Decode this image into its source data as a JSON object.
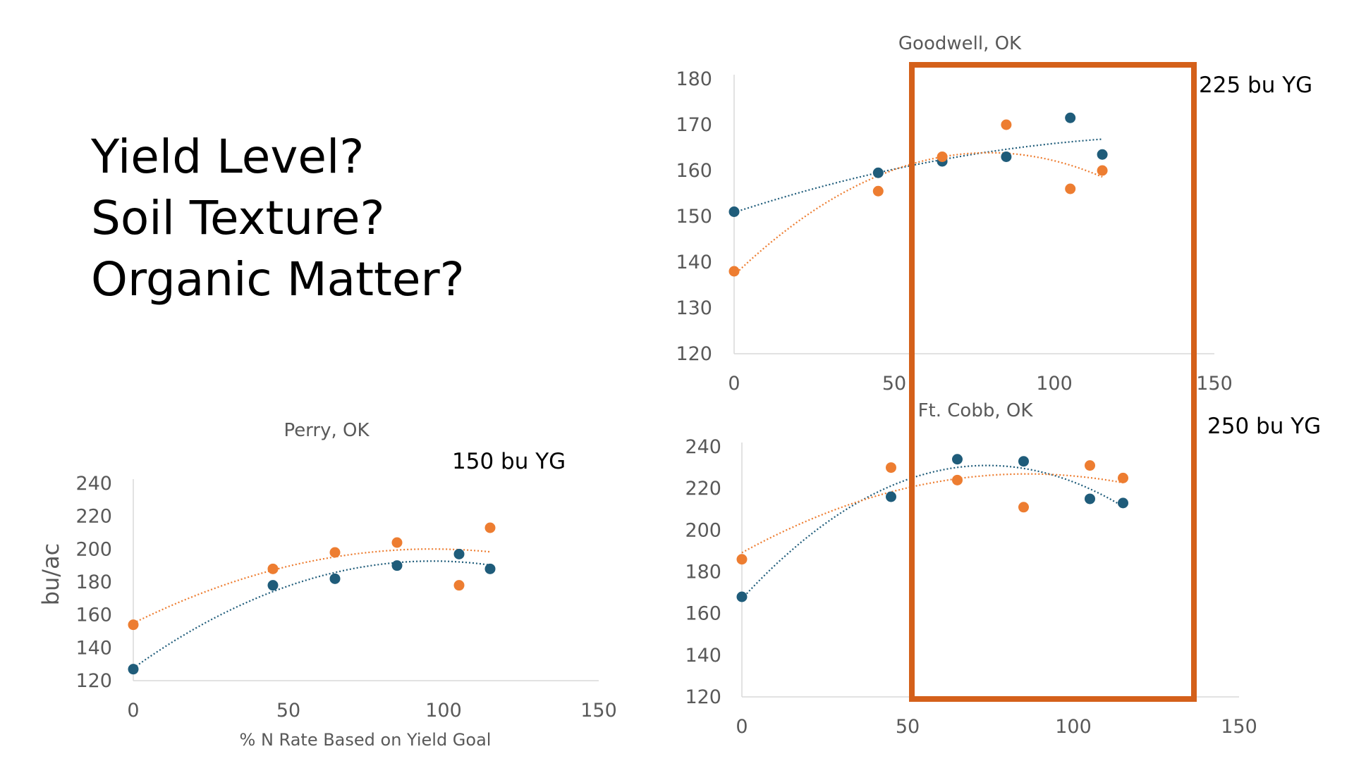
{
  "questions": [
    "Yield Level?",
    "Soil Texture?",
    "Organic Matter?"
  ],
  "colors": {
    "series_blue": "#1F5C7A",
    "series_orange": "#ED7D31",
    "highlight_box": "#D4601A",
    "axis": "#D9D9D9",
    "text_gray": "#595959"
  },
  "chart_data": [
    {
      "type": "scatter",
      "title": "Goodwell, OK",
      "yield_goal_label": "225 bu YG",
      "xlabel": "",
      "ylabel": "",
      "xlim": [
        0,
        150
      ],
      "ylim": [
        120,
        180
      ],
      "x_ticks": [
        0,
        50,
        100,
        150
      ],
      "y_ticks": [
        120,
        130,
        140,
        150,
        160,
        170,
        180
      ],
      "series": [
        {
          "name": "blue",
          "x": [
            0,
            45,
            65,
            85,
            105,
            115
          ],
          "y": [
            151,
            159.5,
            162,
            163,
            171.5,
            163.5
          ],
          "trendline": "poly2"
        },
        {
          "name": "orange",
          "x": [
            0,
            45,
            65,
            85,
            105,
            115
          ],
          "y": [
            138,
            155.5,
            163,
            170,
            156,
            160
          ],
          "trendline": "poly2"
        }
      ]
    },
    {
      "type": "scatter",
      "title": "Perry, OK",
      "yield_goal_label": "150 bu YG",
      "xlabel": "% N Rate Based on Yield Goal",
      "ylabel": "bu/ac",
      "xlim": [
        0,
        150
      ],
      "ylim": [
        120,
        240
      ],
      "x_ticks": [
        0,
        50,
        100,
        150
      ],
      "y_ticks": [
        120,
        140,
        160,
        180,
        200,
        220,
        240
      ],
      "series": [
        {
          "name": "blue",
          "x": [
            0,
            45,
            65,
            85,
            105,
            115
          ],
          "y": [
            127,
            178,
            182,
            190,
            197,
            188
          ],
          "trendline": "poly2"
        },
        {
          "name": "orange",
          "x": [
            0,
            45,
            65,
            85,
            105,
            115
          ],
          "y": [
            154,
            188,
            198,
            204,
            178,
            213
          ],
          "trendline": "poly2"
        }
      ]
    },
    {
      "type": "scatter",
      "title": "Ft. Cobb, OK",
      "yield_goal_label": "250 bu YG",
      "xlabel": "",
      "ylabel": "",
      "xlim": [
        0,
        150
      ],
      "ylim": [
        120,
        240
      ],
      "x_ticks": [
        0,
        50,
        100,
        150
      ],
      "y_ticks": [
        120,
        140,
        160,
        180,
        200,
        220,
        240
      ],
      "series": [
        {
          "name": "blue",
          "x": [
            0,
            45,
            65,
            85,
            105,
            115
          ],
          "y": [
            168,
            216,
            234,
            233,
            215,
            213
          ],
          "trendline": "poly2"
        },
        {
          "name": "orange",
          "x": [
            0,
            45,
            65,
            85,
            105,
            115
          ],
          "y": [
            186,
            230,
            224,
            211,
            231,
            225
          ],
          "trendline": "poly2"
        }
      ]
    }
  ]
}
